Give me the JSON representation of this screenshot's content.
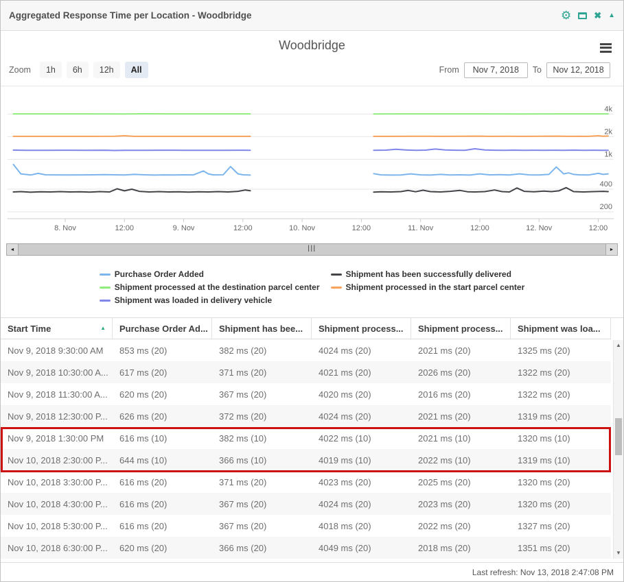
{
  "window": {
    "title": "Aggregated Response Time per Location - Woodbridge",
    "accent_color": "#2fa492",
    "icons": {
      "gear": "⚙",
      "maximize": "window-outline",
      "close": "✖",
      "collapse": "▲"
    }
  },
  "chart_header": {
    "title": "Woodbridge",
    "menu_icon": "hamburger"
  },
  "toolbar": {
    "zoom_label": "Zoom",
    "zoom_buttons": [
      {
        "label": "1h",
        "selected": false
      },
      {
        "label": "6h",
        "selected": false
      },
      {
        "label": "12h",
        "selected": false
      },
      {
        "label": "All",
        "selected": true
      }
    ],
    "from_label": "From",
    "from_value": "Nov 7, 2018",
    "to_label": "To",
    "to_value": "Nov 12, 2018"
  },
  "chart_data": {
    "type": "line",
    "title": "Woodbridge",
    "unit": "ms",
    "time_origin": "Nov 7, 2018 12:00 (t in hours)",
    "y_axis": {
      "scale": "log",
      "position": "right",
      "ticks": [
        {
          "label": "200",
          "value": 200
        },
        {
          "label": "400",
          "value": 400
        },
        {
          "label": "1k",
          "value": 1000
        },
        {
          "label": "2k",
          "value": 2000
        },
        {
          "label": "4k",
          "value": 4000
        }
      ]
    },
    "x_axis": {
      "ticks": [
        {
          "label": "8. Nov",
          "t": 12
        },
        {
          "label": "12:00",
          "t": 24
        },
        {
          "label": "9. Nov",
          "t": 36
        },
        {
          "label": "12:00",
          "t": 48
        },
        {
          "label": "10. Nov",
          "t": 60
        },
        {
          "label": "12:00",
          "t": 72
        },
        {
          "label": "11. Nov",
          "t": 84
        },
        {
          "label": "12:00",
          "t": 96
        },
        {
          "label": "12. Nov",
          "t": 108
        },
        {
          "label": "12:00",
          "t": 120
        }
      ]
    },
    "data_gap": "no data between Nov 9 1:30 PM and Nov 10 2:30 PM",
    "series": [
      {
        "name": "Purchase Order Added",
        "color": "#7cb5ec",
        "segments": [
          [
            [
              1.5,
              853
            ],
            [
              3,
              640
            ],
            [
              5,
              618
            ],
            [
              6.5,
              650
            ],
            [
              8,
              622
            ],
            [
              12,
              618
            ],
            [
              16,
              620
            ],
            [
              20,
              625
            ],
            [
              24,
              618
            ],
            [
              26,
              630
            ],
            [
              28,
              622
            ],
            [
              30,
              617
            ],
            [
              32,
              620
            ],
            [
              34,
              618
            ],
            [
              36,
              622
            ],
            [
              38,
              620
            ],
            [
              40,
              700
            ],
            [
              41,
              640
            ],
            [
              42,
              620
            ],
            [
              44,
              622
            ],
            [
              45.5,
              800
            ],
            [
              47,
              640
            ],
            [
              48,
              622
            ],
            [
              49.5,
              616
            ]
          ],
          [
            [
              74.5,
              644
            ],
            [
              76,
              620
            ],
            [
              78,
              616
            ],
            [
              80,
              618
            ],
            [
              82,
              640
            ],
            [
              84,
              620
            ],
            [
              86,
              616
            ],
            [
              88,
              630
            ],
            [
              90,
              618
            ],
            [
              92,
              622
            ],
            [
              94,
              616
            ],
            [
              96,
              640
            ],
            [
              98,
              620
            ],
            [
              100,
              625
            ],
            [
              102,
              618
            ],
            [
              104,
              640
            ],
            [
              106,
              620
            ],
            [
              108,
              618
            ],
            [
              110,
              630
            ],
            [
              111.5,
              790
            ],
            [
              113,
              640
            ],
            [
              114,
              660
            ],
            [
              115,
              630
            ],
            [
              116,
              622
            ],
            [
              118,
              618
            ],
            [
              120,
              650
            ],
            [
              121,
              630
            ],
            [
              122,
              640
            ]
          ]
        ]
      },
      {
        "name": "Shipment has been successfully delivered",
        "color": "#434348",
        "segments": [
          [
            [
              1.5,
              368
            ],
            [
              3,
              372
            ],
            [
              5,
              365
            ],
            [
              7,
              370
            ],
            [
              9,
              368
            ],
            [
              11,
              372
            ],
            [
              13,
              368
            ],
            [
              15,
              370
            ],
            [
              17,
              366
            ],
            [
              19,
              372
            ],
            [
              21,
              368
            ],
            [
              22.5,
              405
            ],
            [
              24,
              380
            ],
            [
              25.5,
              400
            ],
            [
              27,
              375
            ],
            [
              29,
              368
            ],
            [
              31,
              372
            ],
            [
              33,
              368
            ],
            [
              35,
              370
            ],
            [
              37,
              366
            ],
            [
              39,
              370
            ],
            [
              41,
              368
            ],
            [
              43,
              372
            ],
            [
              45,
              368
            ],
            [
              47,
              375
            ],
            [
              48.5,
              390
            ],
            [
              49.5,
              382
            ]
          ],
          [
            [
              74.5,
              366
            ],
            [
              76,
              370
            ],
            [
              78,
              368
            ],
            [
              80,
              372
            ],
            [
              81.5,
              385
            ],
            [
              83,
              370
            ],
            [
              84.5,
              388
            ],
            [
              86,
              372
            ],
            [
              88,
              368
            ],
            [
              90,
              375
            ],
            [
              92,
              385
            ],
            [
              93.5,
              370
            ],
            [
              95,
              368
            ],
            [
              97,
              372
            ],
            [
              99,
              390
            ],
            [
              100.5,
              372
            ],
            [
              102,
              368
            ],
            [
              103.5,
              415
            ],
            [
              105,
              375
            ],
            [
              107,
              370
            ],
            [
              109,
              378
            ],
            [
              110.5,
              372
            ],
            [
              112,
              380
            ],
            [
              113.5,
              420
            ],
            [
              115,
              372
            ],
            [
              117,
              368
            ],
            [
              119,
              372
            ],
            [
              121,
              375
            ],
            [
              122,
              372
            ]
          ]
        ]
      },
      {
        "name": "Shipment processed at the destination parcel center",
        "color": "#90ed7d",
        "segments": [
          [
            [
              1.5,
              4024
            ],
            [
              8,
              4020
            ],
            [
              16,
              4024
            ],
            [
              24,
              4018
            ],
            [
              28,
              4030
            ],
            [
              32,
              4022
            ],
            [
              40,
              4024
            ],
            [
              49.5,
              4022
            ]
          ],
          [
            [
              74.5,
              4019
            ],
            [
              80,
              4024
            ],
            [
              88,
              4020
            ],
            [
              96,
              4024
            ],
            [
              104,
              4018
            ],
            [
              112,
              4022
            ],
            [
              118,
              4024
            ],
            [
              122,
              4020
            ]
          ]
        ]
      },
      {
        "name": "Shipment processed in the start parcel center",
        "color": "#f7a35c",
        "segments": [
          [
            [
              1.5,
              2021
            ],
            [
              6,
              2018
            ],
            [
              10,
              2022
            ],
            [
              14,
              2018
            ],
            [
              18,
              2020
            ],
            [
              22,
              2026
            ],
            [
              24,
              2060
            ],
            [
              26,
              2022
            ],
            [
              30,
              2018
            ],
            [
              34,
              2022
            ],
            [
              38,
              2018
            ],
            [
              42,
              2022
            ],
            [
              46,
              2018
            ],
            [
              49.5,
              2021
            ]
          ],
          [
            [
              74.5,
              2022
            ],
            [
              78,
              2018
            ],
            [
              82,
              2025
            ],
            [
              86,
              2030
            ],
            [
              88,
              2020
            ],
            [
              92,
              2028
            ],
            [
              96,
              2035
            ],
            [
              98,
              2022
            ],
            [
              102,
              2030
            ],
            [
              104,
              2020
            ],
            [
              108,
              2026
            ],
            [
              112,
              2032
            ],
            [
              114,
              2020
            ],
            [
              116,
              2028
            ],
            [
              118,
              2022
            ],
            [
              120,
              2060
            ],
            [
              121,
              2030
            ],
            [
              122,
              2040
            ]
          ]
        ]
      },
      {
        "name": "Shipment was loaded in delivery vehicle",
        "color": "#8085e9",
        "segments": [
          [
            [
              1.5,
              1325
            ],
            [
              4,
              1320
            ],
            [
              8,
              1318
            ],
            [
              12,
              1322
            ],
            [
              16,
              1315
            ],
            [
              20,
              1322
            ],
            [
              22,
              1310
            ],
            [
              24,
              1320
            ],
            [
              28,
              1318
            ],
            [
              32,
              1322
            ],
            [
              36,
              1318
            ],
            [
              40,
              1320
            ],
            [
              44,
              1318
            ],
            [
              48,
              1322
            ],
            [
              49.5,
              1320
            ]
          ],
          [
            [
              74.5,
              1319
            ],
            [
              77,
              1325
            ],
            [
              79,
              1360
            ],
            [
              81,
              1330
            ],
            [
              83,
              1320
            ],
            [
              85,
              1325
            ],
            [
              87,
              1370
            ],
            [
              89,
              1330
            ],
            [
              91,
              1322
            ],
            [
              93,
              1320
            ],
            [
              95,
              1380
            ],
            [
              97,
              1330
            ],
            [
              99,
              1322
            ],
            [
              101,
              1320
            ],
            [
              103,
              1325
            ],
            [
              105,
              1320
            ],
            [
              107,
              1322
            ],
            [
              109,
              1318
            ],
            [
              111,
              1322
            ],
            [
              113,
              1320
            ],
            [
              115,
              1325
            ],
            [
              117,
              1320
            ],
            [
              119,
              1322
            ],
            [
              121,
              1318
            ],
            [
              122,
              1320
            ]
          ]
        ]
      }
    ]
  },
  "navigator": {
    "left_arrow": "◄",
    "right_arrow": "►",
    "grip": "|||"
  },
  "legend": {
    "columns": [
      [
        {
          "label": "Purchase Order Added",
          "color": "#7cb5ec"
        },
        {
          "label": "Shipment processed at the destination parcel center",
          "color": "#90ed7d"
        },
        {
          "label": "Shipment was loaded in delivery vehicle",
          "color": "#8085e9"
        }
      ],
      [
        {
          "label": "Shipment has been successfully delivered",
          "color": "#434348"
        },
        {
          "label": "Shipment processed in the start parcel center",
          "color": "#f7a35c"
        }
      ]
    ]
  },
  "table": {
    "columns": [
      {
        "label": "Start Time",
        "sorted": "asc"
      },
      {
        "label": "Purchase Order Ad..."
      },
      {
        "label": "Shipment has bee..."
      },
      {
        "label": "Shipment process..."
      },
      {
        "label": "Shipment process..."
      },
      {
        "label": "Shipment was loa..."
      }
    ],
    "sort_icon": "▲",
    "rows": [
      {
        "cells": [
          "Nov 9, 2018 9:30:00 AM",
          "853 ms (20)",
          "382 ms (20)",
          "4024 ms (20)",
          "2021 ms (20)",
          "1325 ms (20)"
        ]
      },
      {
        "cells": [
          "Nov 9, 2018 10:30:00 A...",
          "617 ms (20)",
          "371 ms (20)",
          "4021 ms (20)",
          "2026 ms (20)",
          "1322 ms (20)"
        ]
      },
      {
        "cells": [
          "Nov 9, 2018 11:30:00 A...",
          "620 ms (20)",
          "367 ms (20)",
          "4020 ms (20)",
          "2016 ms (20)",
          "1322 ms (20)"
        ]
      },
      {
        "cells": [
          "Nov 9, 2018 12:30:00 P...",
          "626 ms (20)",
          "372 ms (20)",
          "4024 ms (20)",
          "2021 ms (20)",
          "1319 ms (20)"
        ]
      },
      {
        "cells": [
          "Nov 9, 2018 1:30:00 PM",
          "616 ms (10)",
          "382 ms (10)",
          "4022 ms (10)",
          "2021 ms (10)",
          "1320 ms (10)"
        ]
      },
      {
        "cells": [
          "Nov 10, 2018 2:30:00 P...",
          "644 ms (10)",
          "366 ms (10)",
          "4019 ms (10)",
          "2022 ms (10)",
          "1319 ms (10)"
        ]
      },
      {
        "cells": [
          "Nov 10, 2018 3:30:00 P...",
          "616 ms (20)",
          "371 ms (20)",
          "4023 ms (20)",
          "2025 ms (20)",
          "1320 ms (20)"
        ]
      },
      {
        "cells": [
          "Nov 10, 2018 4:30:00 P...",
          "616 ms (20)",
          "367 ms (20)",
          "4024 ms (20)",
          "2023 ms (20)",
          "1320 ms (20)"
        ]
      },
      {
        "cells": [
          "Nov 10, 2018 5:30:00 P...",
          "616 ms (20)",
          "367 ms (20)",
          "4018 ms (20)",
          "2022 ms (20)",
          "1327 ms (20)"
        ]
      },
      {
        "cells": [
          "Nov 10, 2018 6:30:00 P...",
          "620 ms (20)",
          "366 ms (20)",
          "4049 ms (20)",
          "2018 ms (20)",
          "1351 ms (20)"
        ]
      }
    ],
    "highlight_rows": [
      4,
      5
    ],
    "highlight_color": "#cc1111",
    "scroll_icons": {
      "up": "▲",
      "down": "▼"
    }
  },
  "footer": {
    "last_refresh": "Last refresh: Nov 13, 2018 2:47:08 PM"
  }
}
